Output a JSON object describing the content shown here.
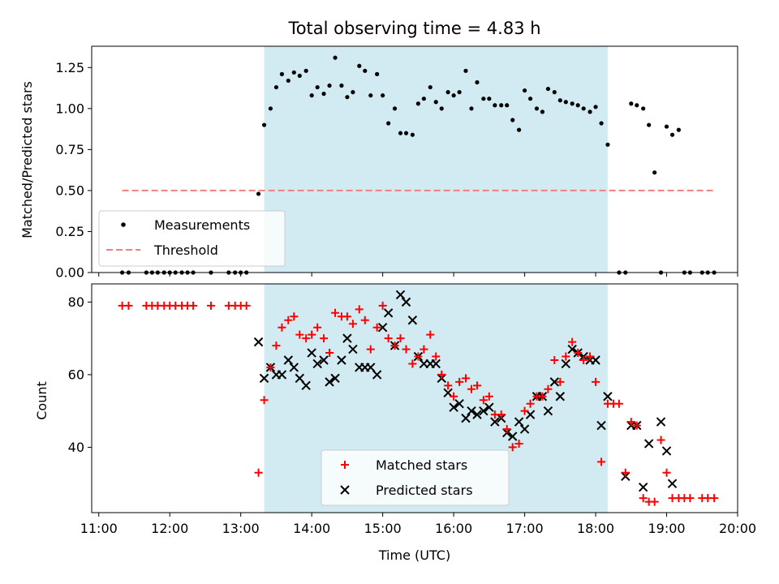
{
  "chart_data": [
    {
      "type": "scatter",
      "panel": "top",
      "title": "Total observing time = 4.83 h",
      "xlabel": "",
      "ylabel": "Matched/Predicted stars",
      "ylim": [
        0,
        1.38
      ],
      "yticks": [
        "0.00",
        "0.25",
        "0.50",
        "0.75",
        "1.00",
        "1.25"
      ],
      "highlight_span_hours": [
        13.33,
        18.17
      ],
      "legend": {
        "placement": "lower-left",
        "entries": [
          "Measurements",
          "Threshold"
        ]
      },
      "threshold": {
        "name": "Threshold",
        "value": 0.5,
        "x_range_hours": [
          11.33,
          19.67
        ],
        "color": "#f08080"
      },
      "series": [
        {
          "name": "Measurements",
          "x_hours": [
            11.33,
            11.42,
            11.67,
            11.75,
            11.83,
            11.92,
            12.0,
            12.08,
            12.17,
            12.25,
            12.33,
            12.58,
            12.83,
            12.92,
            13.0,
            13.08,
            13.25,
            13.33,
            13.42,
            13.5,
            13.58,
            13.67,
            13.75,
            13.83,
            13.92,
            14.0,
            14.08,
            14.17,
            14.25,
            14.33,
            14.42,
            14.5,
            14.58,
            14.67,
            14.75,
            14.83,
            14.92,
            15.0,
            15.08,
            15.17,
            15.25,
            15.33,
            15.42,
            15.5,
            15.58,
            15.67,
            15.75,
            15.83,
            15.92,
            16.0,
            16.08,
            16.17,
            16.25,
            16.33,
            16.42,
            16.5,
            16.58,
            16.67,
            16.75,
            16.83,
            16.92,
            17.0,
            17.08,
            17.17,
            17.25,
            17.33,
            17.42,
            17.5,
            17.58,
            17.67,
            17.75,
            17.83,
            17.92,
            18.0,
            18.08,
            18.17,
            18.33,
            18.42,
            18.5,
            18.58,
            18.67,
            18.75,
            18.83,
            18.92,
            19.0,
            19.08,
            19.17,
            19.25,
            19.33,
            19.5,
            19.58,
            19.67
          ],
          "y": [
            0,
            0,
            0,
            0,
            0,
            0,
            0,
            0,
            0,
            0,
            0,
            0,
            0,
            0,
            0,
            0,
            0.48,
            0.9,
            1.0,
            1.13,
            1.21,
            1.17,
            1.22,
            1.2,
            1.23,
            1.08,
            1.13,
            1.09,
            1.14,
            1.31,
            1.14,
            1.07,
            1.1,
            1.26,
            1.23,
            1.08,
            1.21,
            1.08,
            0.91,
            1.0,
            0.85,
            0.85,
            0.84,
            1.03,
            1.06,
            1.13,
            1.04,
            1.0,
            1.1,
            1.08,
            1.1,
            1.23,
            1.0,
            1.16,
            1.06,
            1.06,
            1.02,
            1.02,
            1.02,
            0.93,
            0.87,
            1.11,
            1.06,
            1.0,
            0.98,
            1.12,
            1.1,
            1.05,
            1.04,
            1.03,
            1.02,
            1.0,
            0.98,
            1.01,
            0.91,
            0.78,
            0.0,
            0.0,
            1.03,
            1.02,
            1.0,
            0.9,
            0.61,
            0.0,
            0.89,
            0.84,
            0.87,
            0.0,
            0.0,
            0.0,
            0.0,
            0.0
          ]
        }
      ]
    },
    {
      "type": "scatter",
      "panel": "bottom",
      "xlabel": "Time (UTC)",
      "ylabel": "Count",
      "ylim": [
        22,
        85
      ],
      "yticks": [
        "40",
        "60",
        "80"
      ],
      "xlim_hours": [
        10.9,
        20.0
      ],
      "xticks": [
        "11:00",
        "12:00",
        "13:00",
        "14:00",
        "15:00",
        "16:00",
        "17:00",
        "18:00",
        "19:00",
        "20:00"
      ],
      "highlight_span_hours": [
        13.33,
        18.17
      ],
      "legend": {
        "placement": "lower-center",
        "entries": [
          "Matched stars",
          "Predicted stars"
        ]
      },
      "series": [
        {
          "name": "Matched stars",
          "marker": "plus",
          "color": "#ff0000",
          "x_hours": [
            11.33,
            11.42,
            11.67,
            11.75,
            11.83,
            11.92,
            12.0,
            12.08,
            12.17,
            12.25,
            12.33,
            12.58,
            12.83,
            12.92,
            13.0,
            13.08,
            13.25,
            13.33,
            13.42,
            13.5,
            13.58,
            13.67,
            13.75,
            13.83,
            13.92,
            14.0,
            14.08,
            14.17,
            14.25,
            14.33,
            14.42,
            14.5,
            14.58,
            14.67,
            14.75,
            14.83,
            14.92,
            15.0,
            15.08,
            15.17,
            15.25,
            15.33,
            15.42,
            15.5,
            15.58,
            15.67,
            15.75,
            15.83,
            15.92,
            16.0,
            16.08,
            16.17,
            16.25,
            16.33,
            16.42,
            16.5,
            16.58,
            16.67,
            16.75,
            16.83,
            16.92,
            17.0,
            17.08,
            17.17,
            17.25,
            17.33,
            17.42,
            17.5,
            17.58,
            17.67,
            17.75,
            17.83,
            17.92,
            18.0,
            18.08,
            18.17,
            18.25,
            18.33,
            18.42,
            18.5,
            18.58,
            18.67,
            18.75,
            18.83,
            18.92,
            19.0,
            19.08,
            19.17,
            19.25,
            19.33,
            19.5,
            19.58,
            19.67
          ],
          "y": [
            79,
            79,
            79,
            79,
            79,
            79,
            79,
            79,
            79,
            79,
            79,
            79,
            79,
            79,
            79,
            79,
            33,
            53,
            62,
            68,
            73,
            75,
            76,
            71,
            70,
            71,
            73,
            70,
            66,
            77,
            76,
            76,
            74,
            78,
            75,
            67,
            73,
            79,
            70,
            68,
            70,
            67,
            63,
            65,
            67,
            71,
            65,
            60,
            57,
            54,
            58,
            59,
            56,
            57,
            53,
            54,
            49,
            49,
            45,
            40,
            41,
            50,
            52,
            54,
            54,
            56,
            64,
            58,
            65,
            69,
            66,
            64,
            65,
            58,
            36,
            52,
            52,
            52,
            33,
            47,
            46,
            26,
            25,
            25,
            42,
            33,
            26,
            26,
            26,
            26,
            26,
            26,
            26
          ]
        },
        {
          "name": "Predicted stars",
          "marker": "x",
          "color": "#000000",
          "x_hours": [
            13.25,
            13.33,
            13.42,
            13.5,
            13.58,
            13.67,
            13.75,
            13.83,
            13.92,
            14.0,
            14.08,
            14.17,
            14.25,
            14.33,
            14.42,
            14.5,
            14.58,
            14.67,
            14.75,
            14.83,
            14.92,
            15.0,
            15.08,
            15.17,
            15.25,
            15.33,
            15.42,
            15.5,
            15.58,
            15.67,
            15.75,
            15.83,
            15.92,
            16.0,
            16.08,
            16.17,
            16.25,
            16.33,
            16.42,
            16.5,
            16.58,
            16.67,
            16.75,
            16.83,
            16.92,
            17.0,
            17.08,
            17.17,
            17.25,
            17.33,
            17.42,
            17.5,
            17.58,
            17.67,
            17.75,
            17.83,
            17.92,
            18.0,
            18.08,
            18.17,
            18.42,
            18.5,
            18.58,
            18.67,
            18.75,
            18.92,
            19.0,
            19.08
          ],
          "y": [
            69,
            59,
            62,
            60,
            60,
            64,
            62,
            59,
            57,
            66,
            63,
            64,
            58,
            59,
            64,
            70,
            67,
            62,
            62,
            62,
            60,
            73,
            77,
            68,
            82,
            80,
            75,
            65,
            63,
            63,
            63,
            59,
            55,
            51,
            52,
            48,
            50,
            49,
            50,
            51,
            47,
            48,
            44,
            43,
            47,
            45,
            49,
            54,
            54,
            50,
            58,
            54,
            63,
            67,
            66,
            65,
            64,
            64,
            46,
            54,
            32,
            46,
            46,
            29,
            41,
            47,
            39,
            30
          ]
        }
      ]
    }
  ]
}
